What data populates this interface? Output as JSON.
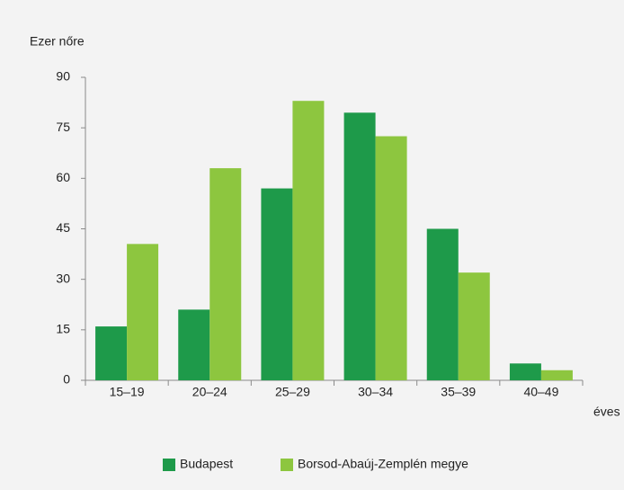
{
  "chart_data": {
    "type": "bar",
    "y_label": "Ezer nőre",
    "x_label": "éves",
    "categories": [
      "15–19",
      "20–24",
      "25–29",
      "30–34",
      "35–39",
      "40–49"
    ],
    "series": [
      {
        "name": "Budapest",
        "color": "#1e9a4a",
        "values": [
          16,
          21,
          57,
          79.5,
          45,
          5
        ]
      },
      {
        "name": "Borsod-Abaúj-Zemplén megye",
        "color": "#8dc63f",
        "values": [
          40.5,
          63,
          83,
          72.5,
          32,
          3
        ]
      }
    ],
    "ylim": [
      0,
      90
    ],
    "yticks": [
      0,
      15,
      30,
      45,
      60,
      75,
      90
    ],
    "grid": false,
    "legend": "bottom"
  }
}
